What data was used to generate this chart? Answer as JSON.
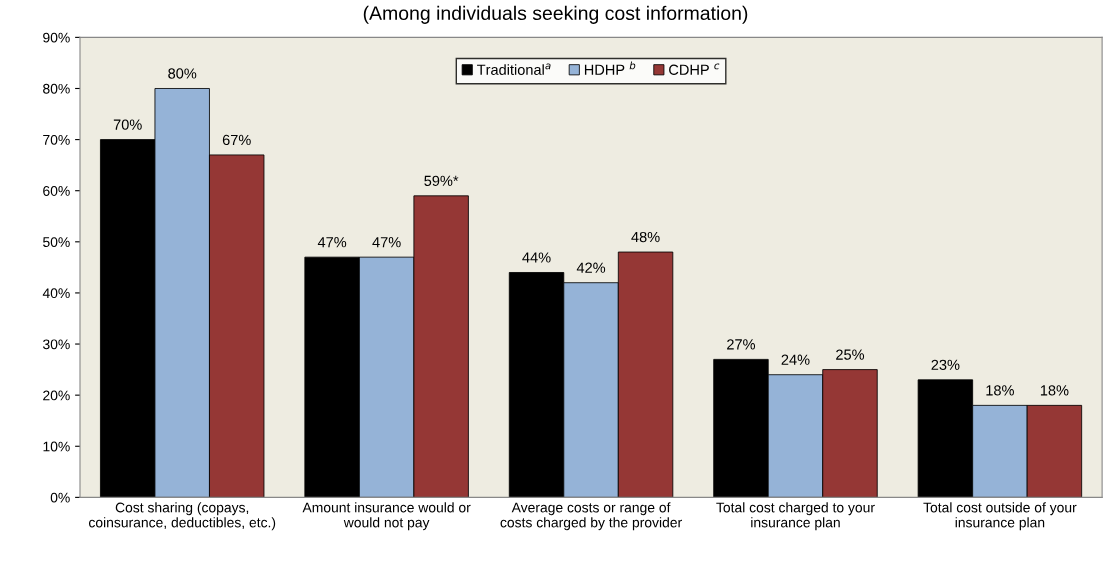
{
  "chart_data": {
    "type": "bar",
    "title": "(Among individuals seeking cost information)",
    "categories": [
      "Cost sharing (copays, coinsurance, deductibles, etc.)",
      "Amount insurance would or would not pay",
      "Average costs or range of costs charged by the provider",
      "Total cost charged to your insurance plan",
      "Total cost outside of your insurance plan"
    ],
    "series": [
      {
        "name": "Traditional$^{a}$",
        "color": "#000000",
        "values": [
          70,
          47,
          44,
          27,
          23
        ],
        "value_labels": [
          "70%",
          "47%",
          "44%",
          "27%",
          "23%"
        ]
      },
      {
        "name": "HDHP $^{b}$",
        "color": "#95b3d7",
        "values": [
          80,
          47,
          42,
          24,
          18
        ],
        "value_labels": [
          "80%",
          "47%",
          "42%",
          "24%",
          "18%"
        ]
      },
      {
        "name": "CDHP $^{c}$",
        "color": "#953735",
        "values": [
          67,
          59,
          48,
          25,
          18
        ],
        "value_labels": [
          "67%",
          "59%*",
          "48%",
          "25%",
          "18%"
        ]
      }
    ],
    "ylim": [
      0,
      90
    ],
    "yticks": [
      {
        "value": 0,
        "label": "0%"
      },
      {
        "value": 10,
        "label": "10%"
      },
      {
        "value": 20,
        "label": "20%"
      },
      {
        "value": 30,
        "label": "30%"
      },
      {
        "value": 40,
        "label": "40%"
      },
      {
        "value": 50,
        "label": "50%"
      },
      {
        "value": 60,
        "label": "60%"
      },
      {
        "value": 70,
        "label": "70%"
      },
      {
        "value": 80,
        "label": "80%"
      },
      {
        "value": 90,
        "label": "90%"
      }
    ],
    "legend": "top",
    "grid": false
  }
}
